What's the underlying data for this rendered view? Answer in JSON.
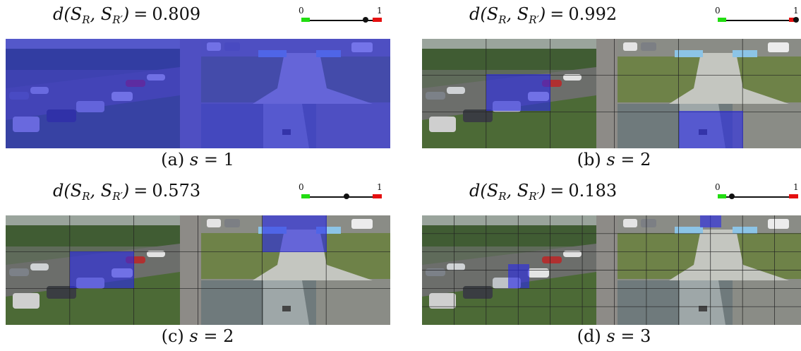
{
  "panels": [
    {
      "id": "a",
      "metric_value": "0.809",
      "caption_letter": "(a)",
      "s_value": "1",
      "score": 0.809
    },
    {
      "id": "b",
      "metric_value": "0.992",
      "caption_letter": "(b)",
      "s_value": "2",
      "score": 0.992
    },
    {
      "id": "c",
      "metric_value": "0.573",
      "caption_letter": "(c)",
      "s_value": "2",
      "score": 0.573
    },
    {
      "id": "d",
      "metric_value": "0.183",
      "caption_letter": "(d)",
      "s_value": "3",
      "score": 0.183
    }
  ],
  "metric": {
    "d": "d",
    "open": "(",
    "S": "S",
    "R": "R",
    "comma": ", ",
    "Rprime": "R′",
    "close": ")",
    "eq": "="
  },
  "caption": {
    "s_symbol": "s",
    "eq": "="
  },
  "scale": {
    "min_label": "0",
    "max_label": "1",
    "good_color": "#22dd11",
    "bad_color": "#e51010"
  },
  "overlay_color": "#2a2ae6"
}
